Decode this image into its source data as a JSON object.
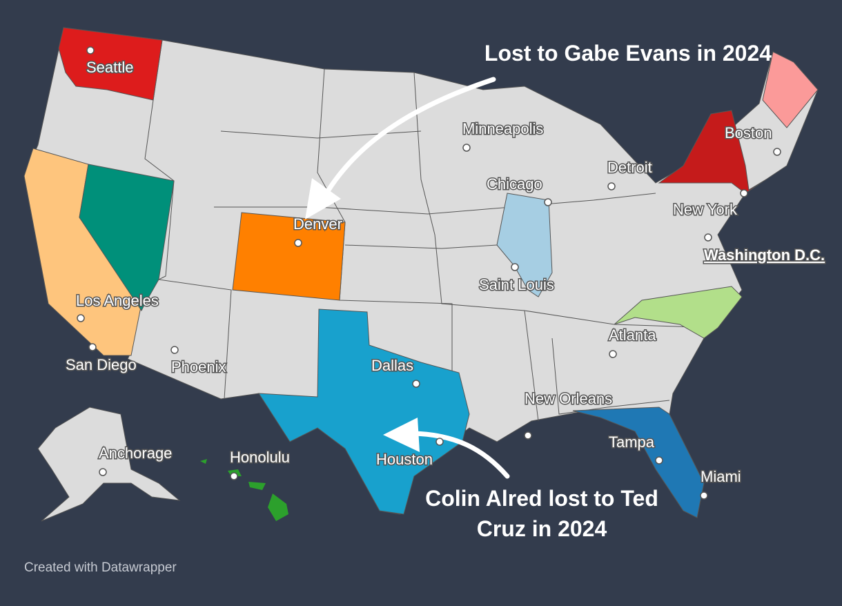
{
  "cities": [
    "Seattle",
    "Minneapolis",
    "Boston",
    "Detroit",
    "Chicago",
    "New York",
    "Washington D.C.",
    "Denver",
    "Saint Louis",
    "Los Angeles",
    "San Diego",
    "Phoenix",
    "Dallas",
    "Atlanta",
    "New Orleans",
    "Tampa",
    "Houston",
    "Miami",
    "Anchorage",
    "Honolulu"
  ],
  "annotations": [
    "Lost to Gabe Evans in 2024",
    "Colin Alred lost to Ted Cruz in 2024"
  ],
  "credit": "Created with Datawrapper"
}
